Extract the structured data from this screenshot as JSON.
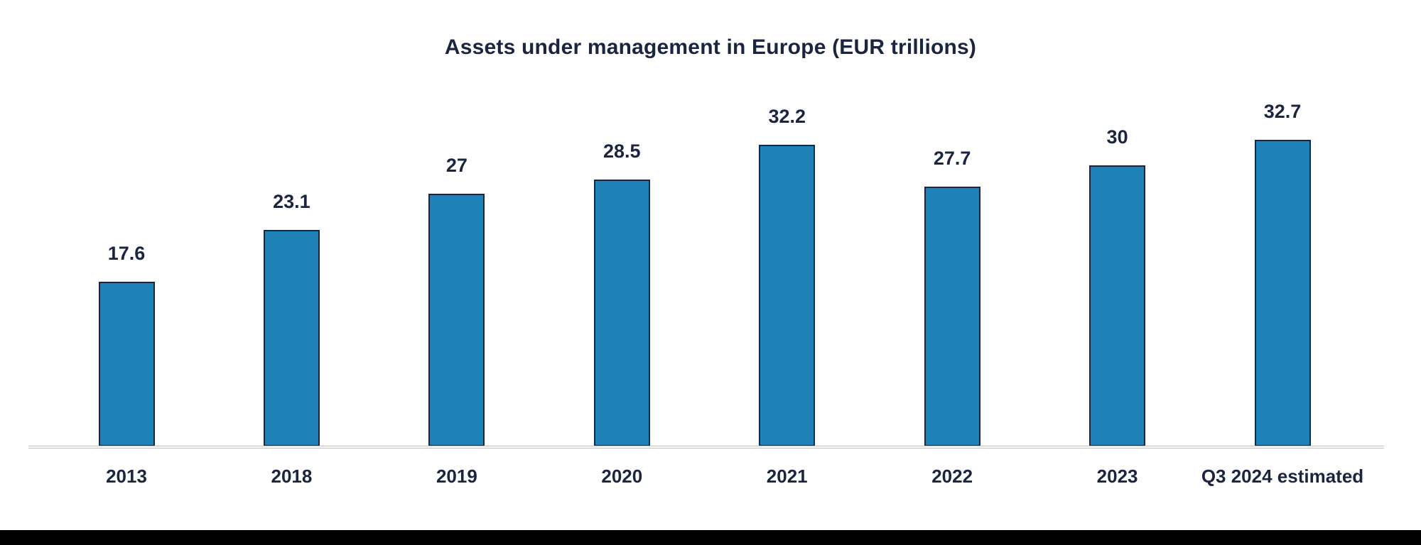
{
  "page": {
    "background_color": "#ffffff",
    "footer_bar_color": "#000000"
  },
  "chart_data": {
    "type": "bar",
    "title": "Assets under management in Europe (EUR trillions)",
    "categories": [
      "2013",
      "2018",
      "2019",
      "2020",
      "2021",
      "2022",
      "2023",
      "Q3 2024 estimated"
    ],
    "values": [
      17.6,
      23.1,
      27,
      28.5,
      32.2,
      27.7,
      30,
      32.7
    ],
    "value_labels": [
      "17.6",
      "23.1",
      "27",
      "28.5",
      "32.2",
      "27.7",
      "30",
      "32.7"
    ],
    "xlabel": "",
    "ylabel": "",
    "ylim": [
      0,
      35
    ],
    "grid": false,
    "legend": false,
    "bar_color": "#1e81b8",
    "bar_border_color": "#16284a",
    "label_color": "#1b2540",
    "axis_line_color": "#c0c0c0"
  }
}
